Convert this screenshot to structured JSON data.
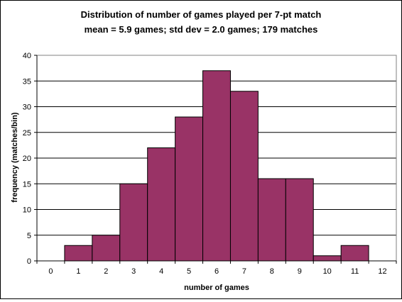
{
  "chart_data": {
    "type": "bar",
    "title": "Distribution of number of games played per 7-pt match",
    "subtitle": "mean = 5.9 games;  std dev = 2.0 games; 179 matches",
    "xlabel": "number of games",
    "ylabel": "frequency (matches/bin)",
    "x_ticks": [
      0,
      1,
      2,
      3,
      4,
      5,
      6,
      7,
      8,
      9,
      10,
      11,
      12
    ],
    "xlim": [
      -0.5,
      12.5
    ],
    "y_ticks": [
      0,
      5,
      10,
      15,
      20,
      25,
      30,
      35,
      40
    ],
    "ylim": [
      0,
      40
    ],
    "categories": [
      1,
      2,
      3,
      4,
      5,
      6,
      7,
      8,
      9,
      10,
      11
    ],
    "values": [
      3,
      5,
      15,
      22,
      28,
      37,
      33,
      16,
      16,
      1,
      3
    ],
    "grid": true,
    "bar_color": "#993366",
    "bar_edge_color": "#000000"
  }
}
